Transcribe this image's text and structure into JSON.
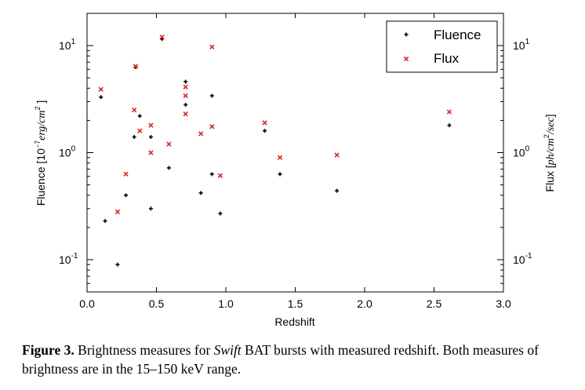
{
  "chart_data": {
    "type": "scatter",
    "xlabel": "Redshift",
    "ylabel_left": {
      "prefix": "Fluence [10",
      "exp": "−7",
      "unit": "erg/cm",
      "unit_exp": "2",
      "suffix": " ]"
    },
    "ylabel_right": {
      "prefix": "Flux [",
      "unit": "ph/cm",
      "unit_exp": "2",
      "tail": "/sec",
      "suffix": "]"
    },
    "xlim": [
      0.0,
      3.0
    ],
    "ylim": [
      0.05,
      20
    ],
    "y_scale": "log",
    "x_ticks": [
      "0.0",
      "0.5",
      "1.0",
      "1.5",
      "2.0",
      "2.5",
      "3.0"
    ],
    "y_ticks": [
      {
        "value": 0.1,
        "base": "10",
        "exp": "-1"
      },
      {
        "value": 1,
        "base": "10",
        "exp": "0"
      },
      {
        "value": 10,
        "base": "10",
        "exp": "1"
      }
    ],
    "legend_position": "top-right",
    "series": [
      {
        "name": "Fluence",
        "marker": "plus",
        "color": "#000000",
        "points": [
          [
            0.1,
            3.3
          ],
          [
            0.13,
            0.23
          ],
          [
            0.22,
            0.09
          ],
          [
            0.28,
            0.4
          ],
          [
            0.34,
            1.4
          ],
          [
            0.35,
            6.3
          ],
          [
            0.38,
            2.2
          ],
          [
            0.46,
            1.4
          ],
          [
            0.46,
            0.3
          ],
          [
            0.54,
            11.5
          ],
          [
            0.59,
            0.72
          ],
          [
            0.71,
            4.6
          ],
          [
            0.71,
            2.8
          ],
          [
            0.82,
            0.42
          ],
          [
            0.9,
            3.4
          ],
          [
            0.9,
            0.63
          ],
          [
            0.96,
            0.27
          ],
          [
            1.28,
            1.6
          ],
          [
            1.39,
            0.63
          ],
          [
            1.8,
            0.44
          ],
          [
            2.61,
            1.8
          ]
        ]
      },
      {
        "name": "Flux",
        "marker": "x",
        "color": "#d62728",
        "points": [
          [
            0.1,
            3.9
          ],
          [
            0.22,
            0.28
          ],
          [
            0.28,
            0.63
          ],
          [
            0.34,
            2.5
          ],
          [
            0.35,
            6.4
          ],
          [
            0.38,
            1.6
          ],
          [
            0.46,
            1.8
          ],
          [
            0.46,
            1.0
          ],
          [
            0.54,
            12.0
          ],
          [
            0.59,
            1.2
          ],
          [
            0.71,
            4.1
          ],
          [
            0.71,
            3.4
          ],
          [
            0.71,
            2.3
          ],
          [
            0.82,
            1.5
          ],
          [
            0.9,
            9.7
          ],
          [
            0.9,
            1.75
          ],
          [
            0.96,
            0.61
          ],
          [
            1.28,
            1.9
          ],
          [
            1.39,
            0.9
          ],
          [
            1.8,
            0.95
          ],
          [
            2.61,
            2.4
          ]
        ]
      }
    ]
  },
  "caption": {
    "label": "Figure 3.",
    "text_before": " Brightness measures for ",
    "italic_word": "Swift",
    "text_after": " BAT bursts with measured redshift. Both measures of brightness are in the 15–150 keV range."
  }
}
